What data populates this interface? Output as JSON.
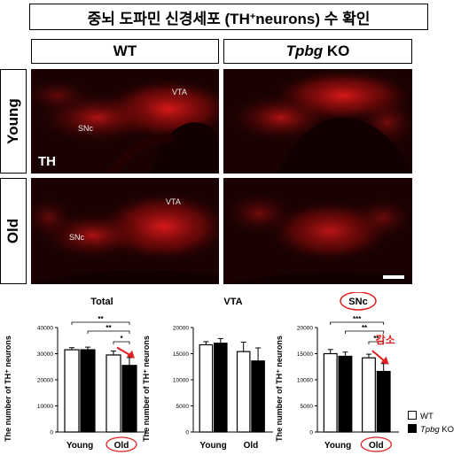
{
  "title": {
    "text_main": "중뇌 도파민 신경세포 (TH",
    "text_sup": "+",
    "text_end": " neurons) 수 확인"
  },
  "columns": [
    {
      "label": "WT"
    },
    {
      "label_italic": "Tpbg",
      "label_rest": " KO"
    }
  ],
  "rows": [
    {
      "label": "Young"
    },
    {
      "label": "Old"
    }
  ],
  "panels": {
    "vta": "VTA",
    "snc": "SNc",
    "stain": "TH"
  },
  "y_axis_label": "The number of TH⁺ neurons",
  "legend": {
    "wt": "WT",
    "ko_italic": "Tpbg",
    "ko_rest": " KO",
    "wt_color": "#ffffff",
    "ko_color": "#000000"
  },
  "annotation": {
    "decrease": "감소",
    "arrow_color": "#e02020"
  },
  "chart_data": [
    {
      "type": "bar",
      "title": "Total",
      "categories": [
        "Young",
        "Old"
      ],
      "series": [
        {
          "name": "WT",
          "values": [
            31500,
            29500
          ],
          "errors": [
            800,
            1500
          ]
        },
        {
          "name": "Tpbg KO",
          "values": [
            31500,
            25500
          ],
          "errors": [
            1000,
            3000
          ]
        }
      ],
      "ylim": [
        0,
        40000
      ],
      "yticks": [
        "0",
        "10000",
        "20000",
        "30000",
        "40000"
      ],
      "significance": [
        "**",
        "**",
        "*"
      ],
      "old_highlight": true
    },
    {
      "type": "bar",
      "title": "VTA",
      "categories": [
        "Young",
        "Old"
      ],
      "series": [
        {
          "name": "WT",
          "values": [
            16700,
            15400
          ],
          "errors": [
            600,
            1800
          ]
        },
        {
          "name": "Tpbg KO",
          "values": [
            17000,
            13600
          ],
          "errors": [
            900,
            2500
          ]
        }
      ],
      "ylim": [
        0,
        20000
      ],
      "yticks": [
        "0",
        "5000",
        "10000",
        "15000",
        "20000"
      ],
      "significance": [],
      "old_highlight": false
    },
    {
      "type": "bar",
      "title": "SNc",
      "title_circled": true,
      "categories": [
        "Young",
        "Old"
      ],
      "series": [
        {
          "name": "WT",
          "values": [
            15000,
            14200
          ],
          "errors": [
            800,
            700
          ]
        },
        {
          "name": "Tpbg KO",
          "values": [
            14500,
            11600
          ],
          "errors": [
            800,
            1500
          ]
        }
      ],
      "ylim": [
        0,
        20000
      ],
      "yticks": [
        "0",
        "5000",
        "10000",
        "15000",
        "20000"
      ],
      "significance": [
        "***",
        "**",
        "**"
      ],
      "old_highlight": true
    }
  ]
}
